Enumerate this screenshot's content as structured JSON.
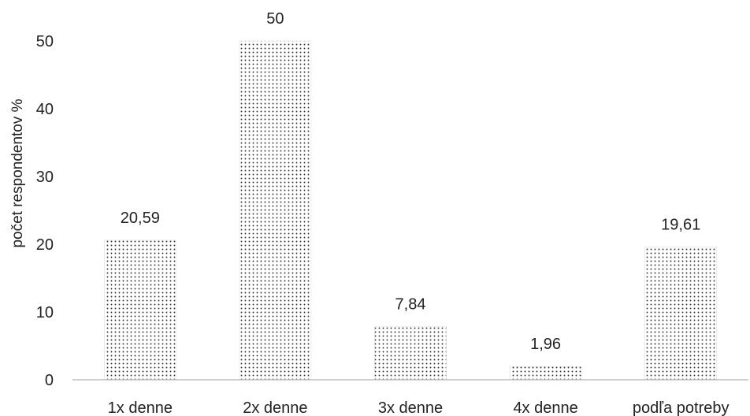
{
  "chart_data": {
    "type": "bar",
    "categories": [
      "1x denne",
      "2x denne",
      "3x denne",
      "4x denne",
      "podľa potreby"
    ],
    "values": [
      20.59,
      50,
      7.84,
      1.96,
      19.61
    ],
    "data_labels": [
      "20,59",
      "50",
      "7,84",
      "1,96",
      "19,61"
    ],
    "title": "",
    "xlabel": "",
    "ylabel": "počet respondentov %",
    "ylim": [
      0,
      50
    ],
    "yticks": [
      0,
      10,
      20,
      30,
      40,
      50
    ],
    "grid": false,
    "legend": "none",
    "bar_fill": "dotted pattern",
    "colors": {
      "bar_dots": "#333333",
      "bar_background": "#ffffff",
      "axis": "#bfbfbf",
      "text": "#222222"
    }
  }
}
